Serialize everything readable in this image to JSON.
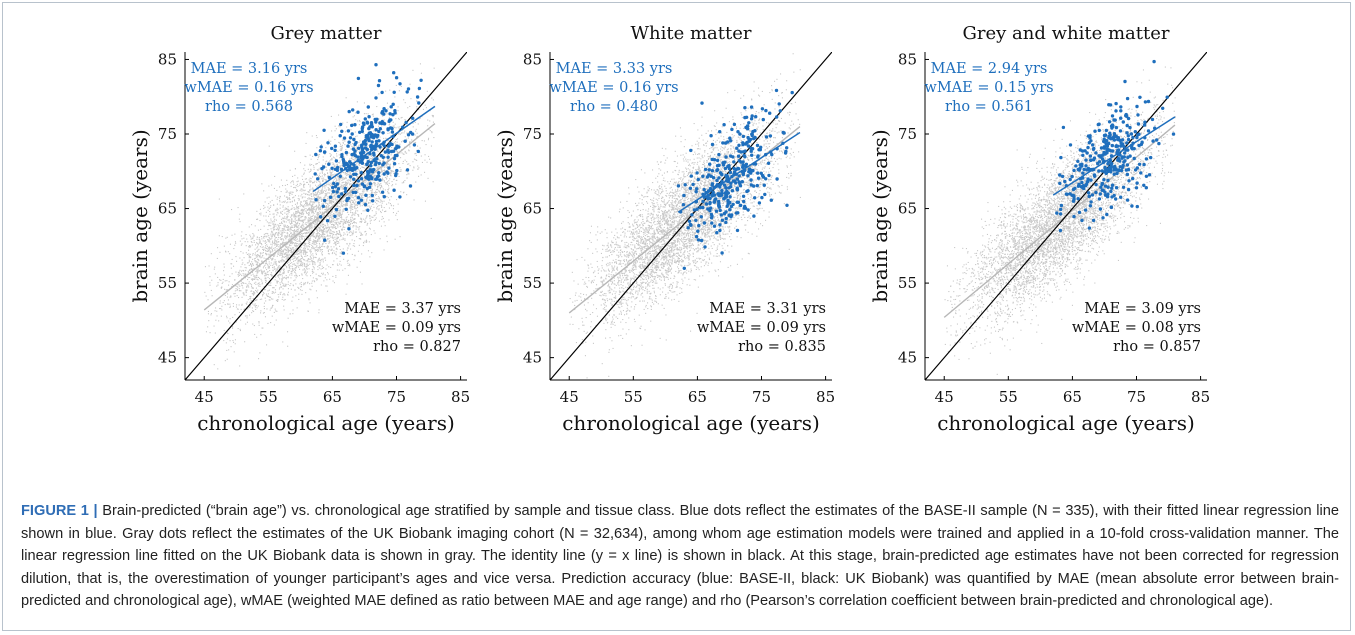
{
  "chart_data": [
    {
      "type": "scatter",
      "title": "Grey matter",
      "xlabel": "chronological age (years)",
      "ylabel": "brain age (years)",
      "xlim": [
        42,
        86
      ],
      "ylim": [
        42,
        86
      ],
      "xticks": [
        "45",
        "55",
        "65",
        "75",
        "85"
      ],
      "yticks": [
        "45",
        "55",
        "65",
        "75",
        "85"
      ],
      "series": [
        {
          "color": "#c8c8c8",
          "x_range": [
            45,
            81
          ],
          "n_points": 32634,
          "fit_line": {
            "x": [
              45,
              81
            ],
            "y": [
              51.4,
              76.4
            ]
          },
          "stats": [
            "MAE = 3.37 yrs",
            "wMAE = 0.09 yrs",
            "rho = 0.827"
          ]
        },
        {
          "color": "#1f6fbd",
          "x_range": [
            62,
            81
          ],
          "n_points": 335,
          "fit_line": {
            "x": [
              62,
              81
            ],
            "y": [
              67.3,
              78.7
            ]
          },
          "stats": [
            "MAE = 3.16 yrs",
            "wMAE = 0.16 yrs",
            "rho = 0.568"
          ]
        }
      ],
      "identity_line": true
    },
    {
      "type": "scatter",
      "title": "White matter",
      "xlabel": "chronological age (years)",
      "ylabel": "brain age (years)",
      "xlim": [
        42,
        86
      ],
      "ylim": [
        42,
        86
      ],
      "xticks": [
        "45",
        "55",
        "65",
        "75",
        "85"
      ],
      "yticks": [
        "45",
        "55",
        "65",
        "75",
        "85"
      ],
      "series": [
        {
          "color": "#c8c8c8",
          "x_range": [
            45,
            81
          ],
          "n_points": 32634,
          "fit_line": {
            "x": [
              45,
              81
            ],
            "y": [
              51.0,
              76.0
            ]
          },
          "stats": [
            "MAE = 3.31 yrs",
            "wMAE = 0.09 yrs",
            "rho = 0.835"
          ]
        },
        {
          "color": "#1f6fbd",
          "x_range": [
            62,
            81
          ],
          "n_points": 335,
          "fit_line": {
            "x": [
              62,
              81
            ],
            "y": [
              64.5,
              75.2
            ]
          },
          "stats": [
            "MAE = 3.33 yrs",
            "wMAE = 0.16 yrs",
            "rho = 0.480"
          ]
        }
      ],
      "identity_line": true
    },
    {
      "type": "scatter",
      "title": "Grey and white matter",
      "xlabel": "chronological age (years)",
      "ylabel": "brain age (years)",
      "xlim": [
        42,
        86
      ],
      "ylim": [
        42,
        86
      ],
      "xticks": [
        "45",
        "55",
        "65",
        "75",
        "85"
      ],
      "yticks": [
        "45",
        "55",
        "65",
        "75",
        "85"
      ],
      "series": [
        {
          "color": "#c8c8c8",
          "x_range": [
            45,
            81
          ],
          "n_points": 32634,
          "fit_line": {
            "x": [
              45,
              81
            ],
            "y": [
              50.4,
              76.2
            ]
          },
          "stats": [
            "MAE = 3.09 yrs",
            "wMAE = 0.08 yrs",
            "rho = 0.857"
          ]
        },
        {
          "color": "#1f6fbd",
          "x_range": [
            62,
            81
          ],
          "n_points": 335,
          "fit_line": {
            "x": [
              62,
              81
            ],
            "y": [
              66.8,
              77.3
            ]
          },
          "stats": [
            "MAE = 2.94 yrs",
            "wMAE = 0.15 yrs",
            "rho = 0.561"
          ]
        }
      ],
      "identity_line": true
    }
  ],
  "caption": {
    "label": "FIGURE 1 |",
    "text": " Brain-predicted (“brain age”) vs. chronological age stratified by sample and tissue class. Blue dots reflect the estimates of the BASE-II sample (N = 335), with their fitted linear regression line shown in blue. Gray dots reflect the estimates of the UK Biobank imaging cohort (N = 32,634), among whom age estimation models were trained and applied in a 10-fold cross-validation manner. The linear regression line fitted on the UK Biobank data is shown in gray. The identity line (y = x line) is shown in black. At this stage, brain-predicted age estimates have not been corrected for regression dilution, that is, the overestimation of younger participant’s ages and vice versa. Prediction accuracy (blue: BASE-II, black: UK Biobank) was quantified by MAE (mean absolute error between brain-predicted and chronological age), wMAE (weighted MAE defined as ratio between MAE and age range) and rho (Pearson’s correlation coefficient between brain-predicted and chronological age)."
  }
}
